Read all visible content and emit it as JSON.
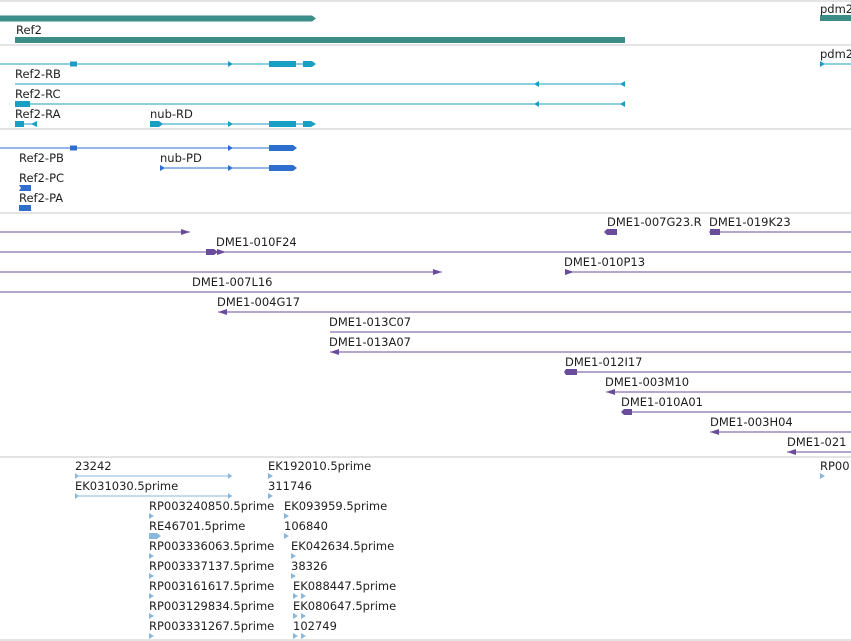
{
  "gene_track": {
    "genes": [
      {
        "label": "Ref2"
      },
      {
        "label": "pdm2"
      }
    ]
  },
  "transcript_track": {
    "transcripts": [
      {
        "label": "pdm2"
      },
      {
        "label": "Ref2-RB"
      },
      {
        "label": "Ref2-RC"
      },
      {
        "label": "Ref2-RA"
      },
      {
        "label": "nub-RD"
      }
    ]
  },
  "protein_track": {
    "proteins": [
      {
        "label": "Ref2-PB"
      },
      {
        "label": "nub-PD"
      },
      {
        "label": "Ref2-PC"
      },
      {
        "label": "Ref2-PA"
      }
    ]
  },
  "clone_track": {
    "clones": [
      {
        "label": "DME1-007G23.R"
      },
      {
        "label": "DME1-019K23"
      },
      {
        "label": "DME1-010F24"
      },
      {
        "label": "DME1-010P13"
      },
      {
        "label": "DME1-007L16"
      },
      {
        "label": "DME1-004G17"
      },
      {
        "label": "DME1-013C07"
      },
      {
        "label": "DME1-013A07"
      },
      {
        "label": "DME1-012I17"
      },
      {
        "label": "DME1-003M10"
      },
      {
        "label": "DME1-010A01"
      },
      {
        "label": "DME1-003H04"
      },
      {
        "label": "DME1-021"
      }
    ]
  },
  "est_track": {
    "ests": [
      {
        "label": "23242"
      },
      {
        "label": "EK192010.5prime"
      },
      {
        "label": "RP00"
      },
      {
        "label": "EK031030.5prime"
      },
      {
        "label": "311746"
      },
      {
        "label": "RP003240850.5prime"
      },
      {
        "label": "EK093959.5prime"
      },
      {
        "label": "RE46701.5prime"
      },
      {
        "label": "106840"
      },
      {
        "label": "RP003336063.5prime"
      },
      {
        "label": "EK042634.5prime"
      },
      {
        "label": "RP003337137.5prime"
      },
      {
        "label": "38326"
      },
      {
        "label": "RP003161617.5prime"
      },
      {
        "label": "EK088447.5prime"
      },
      {
        "label": "RP003129834.5prime"
      },
      {
        "label": "EK080647.5prime"
      },
      {
        "label": "RP003331267.5prime"
      },
      {
        "label": "102749"
      }
    ]
  },
  "colors": {
    "gene": "#3c8c88",
    "transcript": "#1a9fc4",
    "protein": "#2e6ecf",
    "clone": "#6a4c9c",
    "est": "#8ab8dd",
    "separator": "#c8c8c8",
    "label": "#1e1e1e"
  }
}
